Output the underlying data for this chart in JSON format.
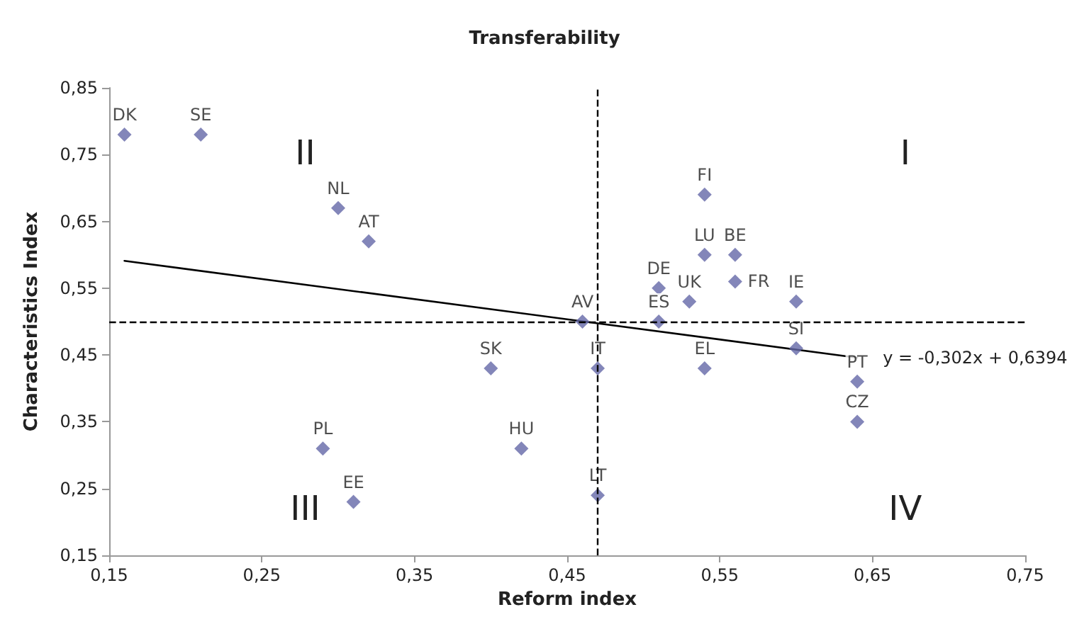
{
  "chart_data": {
    "type": "scatter",
    "title": "Transferability",
    "xlabel": "Reform index",
    "ylabel": "Characteristics Index",
    "xlim": [
      0.15,
      0.75
    ],
    "ylim": [
      0.15,
      0.85
    ],
    "xticks": [
      {
        "value": 0.15,
        "label": "0,15"
      },
      {
        "value": 0.25,
        "label": "0,25"
      },
      {
        "value": 0.35,
        "label": "0,35"
      },
      {
        "value": 0.45,
        "label": "0,45"
      },
      {
        "value": 0.55,
        "label": "0,55"
      },
      {
        "value": 0.65,
        "label": "0,65"
      },
      {
        "value": 0.75,
        "label": "0,75"
      }
    ],
    "yticks": [
      {
        "value": 0.15,
        "label": "0,15"
      },
      {
        "value": 0.25,
        "label": "0,25"
      },
      {
        "value": 0.35,
        "label": "0,35"
      },
      {
        "value": 0.45,
        "label": "0,45"
      },
      {
        "value": 0.55,
        "label": "0,55"
      },
      {
        "value": 0.65,
        "label": "0,65"
      },
      {
        "value": 0.75,
        "label": "0,75"
      },
      {
        "value": 0.85,
        "label": "0,85"
      }
    ],
    "grid": false,
    "legend": false,
    "marker": "diamond",
    "series": [
      {
        "name": "DK",
        "color": "#6468a8",
        "x": [
          0.16
        ],
        "values": [
          0.78
        ]
      },
      {
        "name": "SE",
        "color": "#6468a8",
        "x": [
          0.21
        ],
        "values": [
          0.78
        ]
      },
      {
        "name": "NL",
        "color": "#6468a8",
        "x": [
          0.3
        ],
        "values": [
          0.67
        ]
      },
      {
        "name": "AT",
        "color": "#6468a8",
        "x": [
          0.32
        ],
        "values": [
          0.62
        ]
      },
      {
        "name": "AV",
        "color": "#6468a8",
        "x": [
          0.46
        ],
        "values": [
          0.5
        ]
      },
      {
        "name": "SK",
        "color": "#6468a8",
        "x": [
          0.4
        ],
        "values": [
          0.43
        ]
      },
      {
        "name": "PL",
        "color": "#6468a8",
        "x": [
          0.29
        ],
        "values": [
          0.31
        ]
      },
      {
        "name": "EE",
        "color": "#6468a8",
        "x": [
          0.31
        ],
        "values": [
          0.23
        ]
      },
      {
        "name": "HU",
        "color": "#6468a8",
        "x": [
          0.42
        ],
        "values": [
          0.31
        ]
      },
      {
        "name": "IT",
        "color": "#6468a8",
        "x": [
          0.47
        ],
        "values": [
          0.43
        ]
      },
      {
        "name": "LT",
        "color": "#6468a8",
        "x": [
          0.47
        ],
        "values": [
          0.24
        ]
      },
      {
        "name": "FI",
        "color": "#6468a8",
        "x": [
          0.54
        ],
        "values": [
          0.69
        ]
      },
      {
        "name": "LU",
        "color": "#6468a8",
        "x": [
          0.54
        ],
        "values": [
          0.6
        ]
      },
      {
        "name": "BE",
        "color": "#6468a8",
        "x": [
          0.56
        ],
        "values": [
          0.6
        ]
      },
      {
        "name": "FR",
        "color": "#6468a8",
        "x": [
          0.56
        ],
        "values": [
          0.56
        ]
      },
      {
        "name": "DE",
        "color": "#6468a8",
        "x": [
          0.51
        ],
        "values": [
          0.55
        ]
      },
      {
        "name": "UK",
        "color": "#6468a8",
        "x": [
          0.53
        ],
        "values": [
          0.53
        ]
      },
      {
        "name": "ES",
        "color": "#6468a8",
        "x": [
          0.51
        ],
        "values": [
          0.5
        ]
      },
      {
        "name": "IE",
        "color": "#6468a8",
        "x": [
          0.6
        ],
        "values": [
          0.53
        ]
      },
      {
        "name": "SI",
        "color": "#6468a8",
        "x": [
          0.6
        ],
        "values": [
          0.46
        ]
      },
      {
        "name": "EL",
        "color": "#6468a8",
        "x": [
          0.54
        ],
        "values": [
          0.43
        ]
      },
      {
        "name": "PT",
        "color": "#6468a8",
        "x": [
          0.64
        ],
        "values": [
          0.41
        ]
      },
      {
        "name": "CZ",
        "color": "#6468a8",
        "x": [
          0.64
        ],
        "values": [
          0.35
        ]
      },
      {
        "type": "line",
        "color": "#000000",
        "marker": "none",
        "line_style": "solid",
        "x": [
          0.16,
          0.64
        ],
        "values": [
          0.591,
          0.446
        ]
      }
    ],
    "ref_lines": [
      {
        "axis": "x",
        "value": 0.47,
        "color": "#000000",
        "line_style": "dashed"
      },
      {
        "axis": "y",
        "value": 0.5,
        "color": "#000000",
        "line_style": "dashed"
      }
    ],
    "annotations": [
      "y = -0,302x + 0,6394",
      "I",
      "II",
      "III",
      "IV"
    ]
  }
}
